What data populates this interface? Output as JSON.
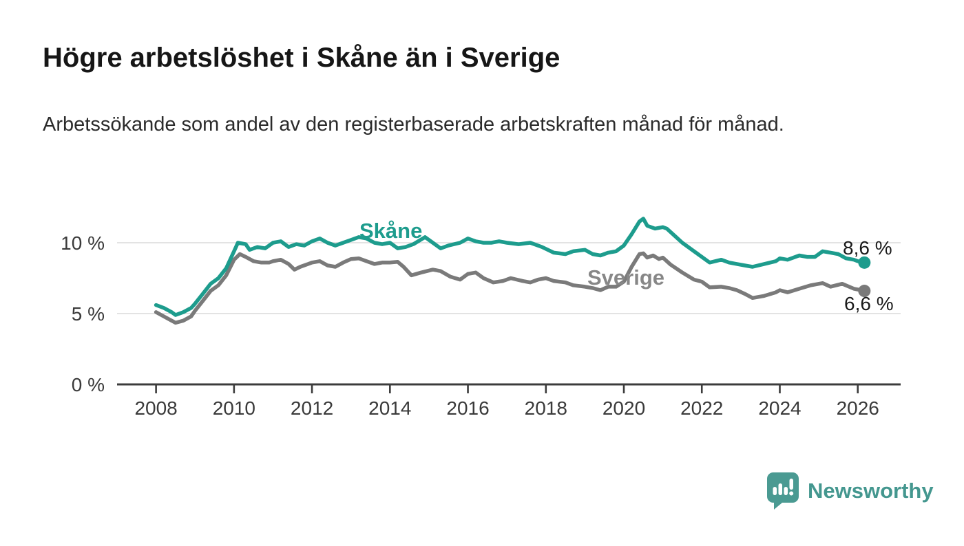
{
  "header": {
    "title": "Högre arbetslöshet i Skåne än i Sverige",
    "subtitle": "Arbetssökande som andel av den registerbaserade arbetskraften månad för månad."
  },
  "branding": {
    "logo_text": "Newsworthy",
    "logo_color": "#44978f",
    "logo_icon": "speech-bubble-bar-chart-icon"
  },
  "chart_data": {
    "type": "line",
    "title": "Högre arbetslöshet i Skåne än i Sverige",
    "xlabel": "",
    "ylabel": "",
    "x_domain": [
      2007,
      2027.1
    ],
    "ylim": [
      0,
      12
    ],
    "grid": "horizontal",
    "x_ticks": [
      2008,
      2010,
      2012,
      2014,
      2016,
      2018,
      2020,
      2022,
      2024,
      2026
    ],
    "y_ticks": [
      {
        "value": 0,
        "label": "0 %"
      },
      {
        "value": 5,
        "label": "5 %"
      },
      {
        "value": 10,
        "label": "10 %"
      }
    ],
    "colors": {
      "grid": "#dadada",
      "axis": "#3c3c3c",
      "tick_text": "#3a3a3a"
    },
    "series": [
      {
        "name": "Sverige",
        "color": "#7a7a7a",
        "end_label": "6,6 %",
        "end_value": 6.6,
        "points": [
          [
            2008.0,
            5.1
          ],
          [
            2008.2,
            4.8
          ],
          [
            2008.4,
            4.5
          ],
          [
            2008.5,
            4.35
          ],
          [
            2008.7,
            4.5
          ],
          [
            2008.9,
            4.8
          ],
          [
            2009.0,
            5.2
          ],
          [
            2009.2,
            5.9
          ],
          [
            2009.4,
            6.6
          ],
          [
            2009.6,
            7.0
          ],
          [
            2009.8,
            7.7
          ],
          [
            2010.0,
            8.8
          ],
          [
            2010.15,
            9.2
          ],
          [
            2010.3,
            9.0
          ],
          [
            2010.5,
            8.7
          ],
          [
            2010.7,
            8.6
          ],
          [
            2010.9,
            8.6
          ],
          [
            2011.0,
            8.7
          ],
          [
            2011.2,
            8.8
          ],
          [
            2011.4,
            8.5
          ],
          [
            2011.55,
            8.1
          ],
          [
            2011.7,
            8.3
          ],
          [
            2011.9,
            8.5
          ],
          [
            2012.0,
            8.6
          ],
          [
            2012.2,
            8.7
          ],
          [
            2012.4,
            8.4
          ],
          [
            2012.6,
            8.3
          ],
          [
            2012.8,
            8.6
          ],
          [
            2013.0,
            8.85
          ],
          [
            2013.2,
            8.9
          ],
          [
            2013.4,
            8.7
          ],
          [
            2013.6,
            8.5
          ],
          [
            2013.8,
            8.6
          ],
          [
            2014.0,
            8.6
          ],
          [
            2014.2,
            8.65
          ],
          [
            2014.35,
            8.3
          ],
          [
            2014.55,
            7.7
          ],
          [
            2014.8,
            7.9
          ],
          [
            2015.1,
            8.1
          ],
          [
            2015.3,
            8.0
          ],
          [
            2015.55,
            7.6
          ],
          [
            2015.8,
            7.4
          ],
          [
            2016.0,
            7.8
          ],
          [
            2016.2,
            7.9
          ],
          [
            2016.4,
            7.5
          ],
          [
            2016.65,
            7.2
          ],
          [
            2016.9,
            7.3
          ],
          [
            2017.1,
            7.5
          ],
          [
            2017.4,
            7.3
          ],
          [
            2017.6,
            7.2
          ],
          [
            2017.8,
            7.4
          ],
          [
            2018.0,
            7.5
          ],
          [
            2018.2,
            7.3
          ],
          [
            2018.5,
            7.2
          ],
          [
            2018.7,
            7.0
          ],
          [
            2019.0,
            6.9
          ],
          [
            2019.2,
            6.8
          ],
          [
            2019.4,
            6.65
          ],
          [
            2019.6,
            6.9
          ],
          [
            2019.8,
            6.9
          ],
          [
            2020.0,
            7.25
          ],
          [
            2020.2,
            8.3
          ],
          [
            2020.4,
            9.2
          ],
          [
            2020.5,
            9.25
          ],
          [
            2020.6,
            8.95
          ],
          [
            2020.75,
            9.1
          ],
          [
            2020.9,
            8.85
          ],
          [
            2021.0,
            8.95
          ],
          [
            2021.2,
            8.45
          ],
          [
            2021.5,
            7.9
          ],
          [
            2021.8,
            7.4
          ],
          [
            2022.0,
            7.25
          ],
          [
            2022.2,
            6.85
          ],
          [
            2022.5,
            6.9
          ],
          [
            2022.7,
            6.8
          ],
          [
            2022.9,
            6.65
          ],
          [
            2023.1,
            6.4
          ],
          [
            2023.3,
            6.1
          ],
          [
            2023.6,
            6.25
          ],
          [
            2023.9,
            6.5
          ],
          [
            2024.0,
            6.65
          ],
          [
            2024.2,
            6.5
          ],
          [
            2024.5,
            6.75
          ],
          [
            2024.8,
            7.0
          ],
          [
            2025.1,
            7.15
          ],
          [
            2025.3,
            6.9
          ],
          [
            2025.6,
            7.1
          ],
          [
            2025.9,
            6.75
          ],
          [
            2026.0,
            6.7
          ],
          [
            2026.17,
            6.6
          ]
        ]
      },
      {
        "name": "Skåne",
        "color": "#1d9c8d",
        "end_label": "8,6 %",
        "end_value": 8.6,
        "points": [
          [
            2008.0,
            5.6
          ],
          [
            2008.2,
            5.4
          ],
          [
            2008.4,
            5.1
          ],
          [
            2008.5,
            4.9
          ],
          [
            2008.7,
            5.1
          ],
          [
            2008.9,
            5.4
          ],
          [
            2009.0,
            5.7
          ],
          [
            2009.2,
            6.4
          ],
          [
            2009.4,
            7.1
          ],
          [
            2009.6,
            7.5
          ],
          [
            2009.8,
            8.2
          ],
          [
            2010.0,
            9.4
          ],
          [
            2010.1,
            10.0
          ],
          [
            2010.3,
            9.9
          ],
          [
            2010.4,
            9.5
          ],
          [
            2010.6,
            9.7
          ],
          [
            2010.8,
            9.6
          ],
          [
            2011.0,
            10.0
          ],
          [
            2011.2,
            10.1
          ],
          [
            2011.4,
            9.7
          ],
          [
            2011.6,
            9.9
          ],
          [
            2011.8,
            9.8
          ],
          [
            2012.0,
            10.1
          ],
          [
            2012.2,
            10.3
          ],
          [
            2012.4,
            10.0
          ],
          [
            2012.6,
            9.8
          ],
          [
            2012.8,
            10.0
          ],
          [
            2013.0,
            10.2
          ],
          [
            2013.2,
            10.4
          ],
          [
            2013.4,
            10.3
          ],
          [
            2013.6,
            10.0
          ],
          [
            2013.8,
            9.9
          ],
          [
            2014.0,
            10.0
          ],
          [
            2014.2,
            9.6
          ],
          [
            2014.4,
            9.7
          ],
          [
            2014.6,
            9.9
          ],
          [
            2014.9,
            10.4
          ],
          [
            2015.1,
            10.0
          ],
          [
            2015.3,
            9.6
          ],
          [
            2015.5,
            9.8
          ],
          [
            2015.8,
            10.0
          ],
          [
            2016.0,
            10.3
          ],
          [
            2016.2,
            10.1
          ],
          [
            2016.4,
            10.0
          ],
          [
            2016.6,
            10.0
          ],
          [
            2016.8,
            10.1
          ],
          [
            2017.0,
            10.0
          ],
          [
            2017.3,
            9.9
          ],
          [
            2017.6,
            10.0
          ],
          [
            2017.9,
            9.7
          ],
          [
            2018.2,
            9.3
          ],
          [
            2018.5,
            9.2
          ],
          [
            2018.7,
            9.4
          ],
          [
            2019.0,
            9.5
          ],
          [
            2019.2,
            9.2
          ],
          [
            2019.4,
            9.1
          ],
          [
            2019.6,
            9.3
          ],
          [
            2019.8,
            9.4
          ],
          [
            2020.0,
            9.8
          ],
          [
            2020.2,
            10.6
          ],
          [
            2020.4,
            11.5
          ],
          [
            2020.5,
            11.7
          ],
          [
            2020.6,
            11.2
          ],
          [
            2020.8,
            11.0
          ],
          [
            2021.0,
            11.1
          ],
          [
            2021.1,
            11.0
          ],
          [
            2021.3,
            10.5
          ],
          [
            2021.5,
            10.0
          ],
          [
            2021.8,
            9.4
          ],
          [
            2022.0,
            9.0
          ],
          [
            2022.2,
            8.6
          ],
          [
            2022.5,
            8.8
          ],
          [
            2022.7,
            8.6
          ],
          [
            2022.9,
            8.5
          ],
          [
            2023.1,
            8.4
          ],
          [
            2023.3,
            8.3
          ],
          [
            2023.6,
            8.5
          ],
          [
            2023.9,
            8.7
          ],
          [
            2024.0,
            8.9
          ],
          [
            2024.2,
            8.8
          ],
          [
            2024.5,
            9.1
          ],
          [
            2024.7,
            9.0
          ],
          [
            2024.9,
            9.0
          ],
          [
            2025.1,
            9.4
          ],
          [
            2025.3,
            9.3
          ],
          [
            2025.5,
            9.2
          ],
          [
            2025.7,
            8.9
          ],
          [
            2025.9,
            8.8
          ],
          [
            2026.0,
            8.7
          ],
          [
            2026.17,
            8.6
          ]
        ]
      }
    ]
  }
}
